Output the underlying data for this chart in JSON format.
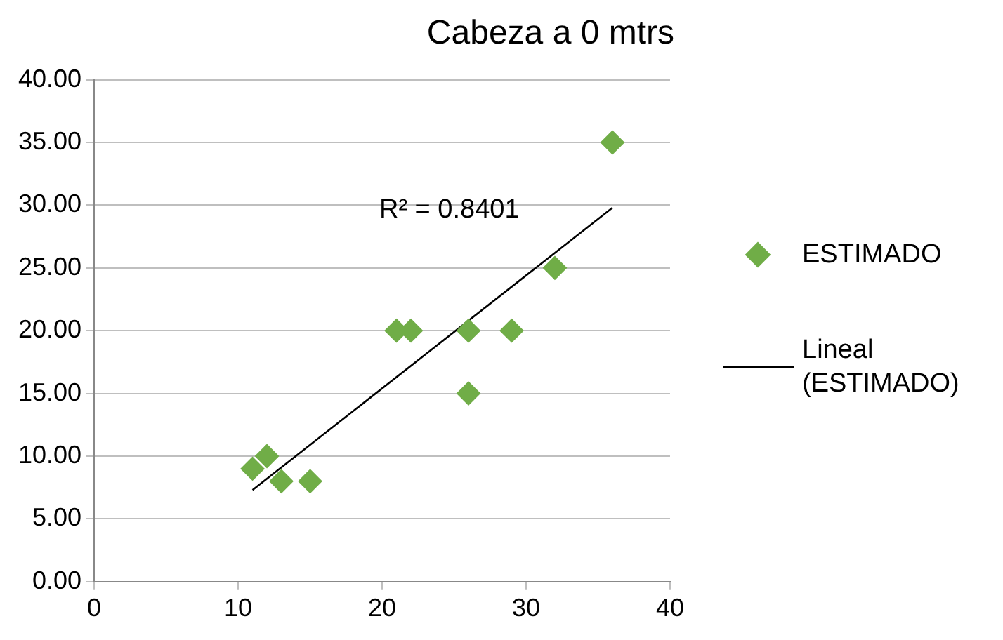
{
  "chart_data": {
    "type": "scatter",
    "title": "Cabeza a 0 mtrs",
    "x": [
      11,
      12,
      13,
      15,
      21,
      22,
      26,
      26,
      29,
      32,
      36
    ],
    "series": [
      {
        "name": "ESTIMADO",
        "color": "#70ad47",
        "marker": "diamond",
        "values": [
          9,
          10,
          8,
          8,
          20,
          20,
          20,
          15,
          20,
          25,
          35
        ]
      },
      {
        "name": "Lineal (ESTIMADO)",
        "type": "line",
        "color": "#000000",
        "marker": "none",
        "line_style": "solid",
        "x": [
          11,
          36
        ],
        "values": [
          7.3,
          29.8
        ]
      }
    ],
    "xlim": [
      0,
      40
    ],
    "xticks": [
      0,
      10,
      20,
      30,
      40
    ],
    "ylim": [
      0,
      40
    ],
    "yticks": [
      {
        "value": 0,
        "label": "0.00"
      },
      {
        "value": 5,
        "label": "5.00"
      },
      {
        "value": 10,
        "label": "10.00"
      },
      {
        "value": 15,
        "label": "15.00"
      },
      {
        "value": 20,
        "label": "20.00"
      },
      {
        "value": 25,
        "label": "25.00"
      },
      {
        "value": 30,
        "label": "30.00"
      },
      {
        "value": 35,
        "label": "35.00"
      },
      {
        "value": 40,
        "label": "40.00"
      }
    ],
    "grid": "y",
    "legend": "right",
    "annotations": [
      "R² = 0.8401"
    ]
  }
}
